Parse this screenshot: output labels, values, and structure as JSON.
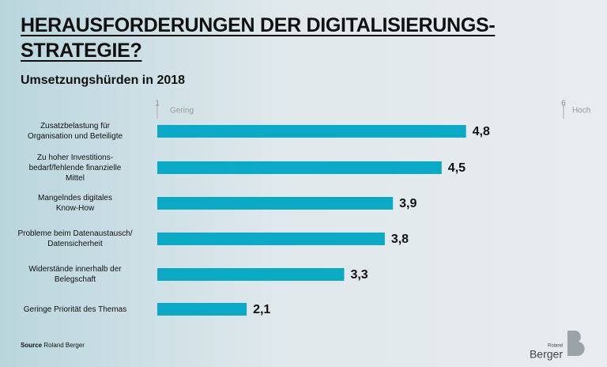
{
  "chart_data": {
    "type": "bar",
    "orientation": "horizontal",
    "title": "HERAUSFORDERUNGEN DER DIGITALISIERUNGS-STRATEGIE?",
    "subtitle": "Umsetzungshürden in 2018",
    "categories": [
      "Zusatzbelastung für\nOrganisation und Beteiligte",
      "Zu hoher Investitions-\nbedarf/fehlende finanzielle\nMittel",
      "Mangelndes digitales\nKnow-How",
      "Probleme beim Datenaustausch/\nDatensicherheit",
      "Widerstände innerhalb der\nBelegschaft",
      "Geringe Priorität des Themas"
    ],
    "values": [
      4.8,
      4.5,
      3.9,
      3.8,
      3.3,
      2.1
    ],
    "value_labels": [
      "4,8",
      "4,5",
      "3,9",
      "3,8",
      "3,3",
      "2,1"
    ],
    "color": "#0aa9c6",
    "xlim": [
      1,
      6
    ],
    "xticks": [
      1,
      6
    ],
    "x_low_label": "Gering",
    "x_high_label": "Hoch",
    "source_label": "Source",
    "source": "Roland Berger",
    "logo_top": "Roland",
    "logo": "Berger"
  }
}
